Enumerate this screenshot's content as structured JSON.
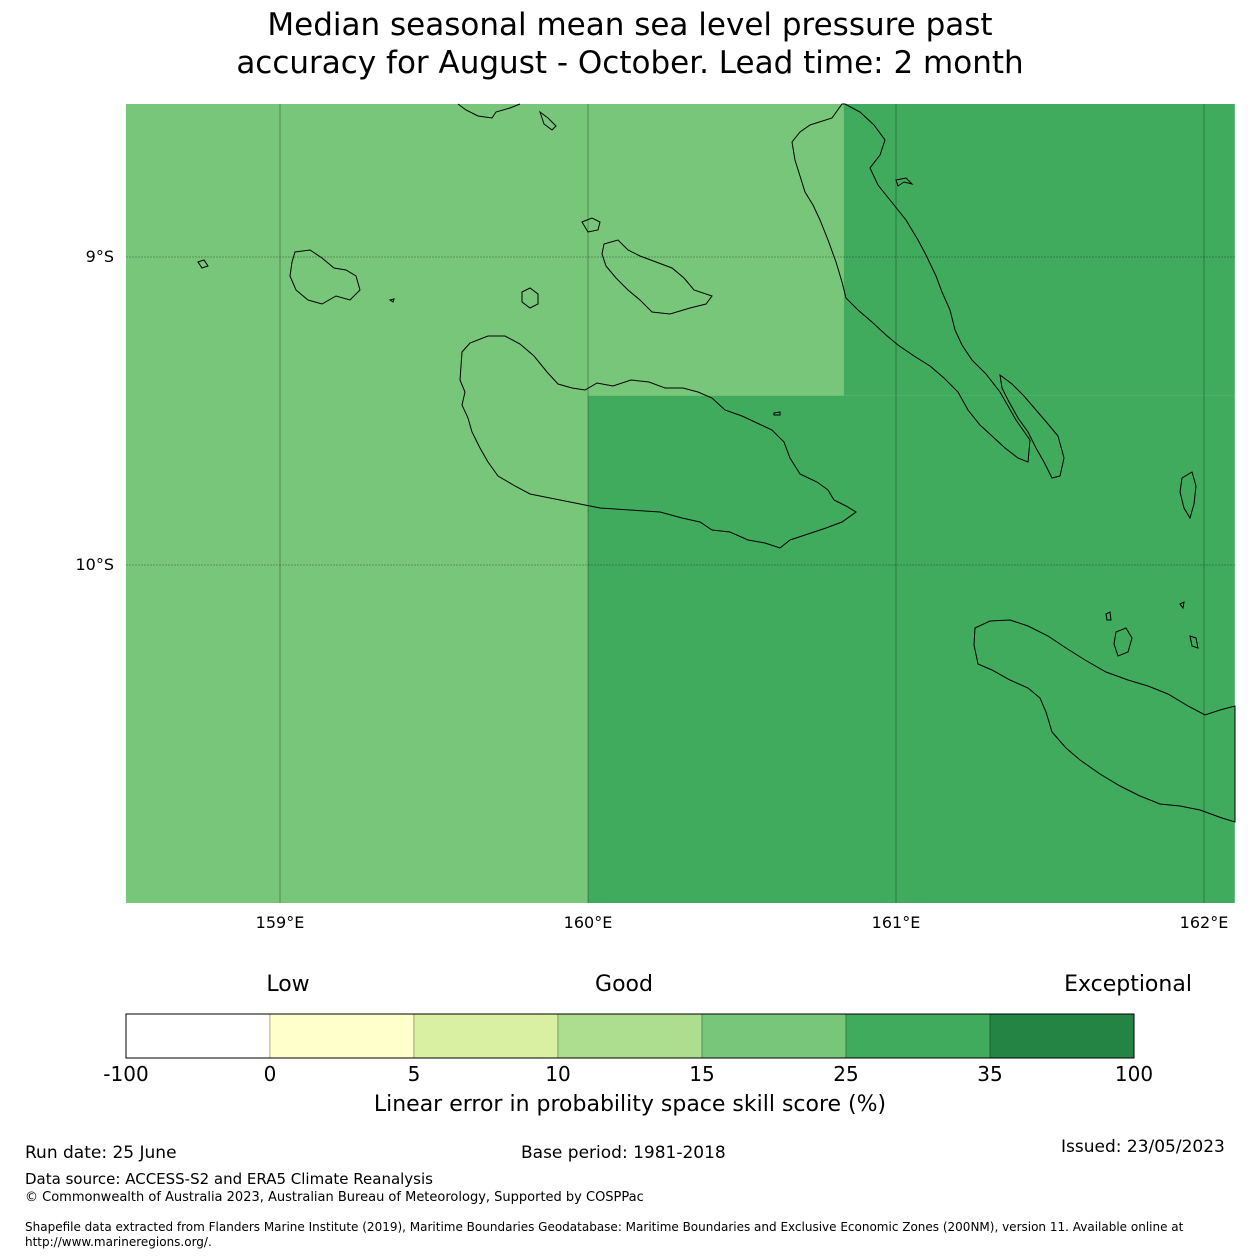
{
  "title": {
    "line1": "Median seasonal mean sea level pressure past",
    "line2": "accuracy for August - October. Lead time: 2 month"
  },
  "map": {
    "lon_range": [
      158.5,
      162.1
    ],
    "lat_range": [
      -11.1,
      -8.5
    ],
    "lat_ticks": [
      {
        "value": -9,
        "label": "9°S"
      },
      {
        "value": -10,
        "label": "10°S"
      }
    ],
    "lon_ticks": [
      {
        "value": 159,
        "label": "159°E"
      },
      {
        "value": 160,
        "label": "160°E"
      },
      {
        "value": 161,
        "label": "161°E"
      },
      {
        "value": 162,
        "label": "162°E"
      }
    ],
    "skill_cells": [
      {
        "lon": [
          158.5,
          160.0
        ],
        "lat": [
          -11.1,
          -8.5
        ],
        "category": "15-25",
        "color": "#78c679"
      },
      {
        "lon": [
          160.0,
          160.83
        ],
        "lat": [
          -9.45,
          -8.5
        ],
        "category": "15-25",
        "color": "#78c679"
      },
      {
        "lon": [
          160.83,
          162.1
        ],
        "lat": [
          -9.45,
          -8.5
        ],
        "category": "25-35",
        "color": "#41ab5d"
      },
      {
        "lon": [
          160.0,
          162.1
        ],
        "lat": [
          -11.1,
          -9.45
        ],
        "category": "25-35",
        "color": "#41ab5d"
      }
    ]
  },
  "colorbar": {
    "categories": [
      {
        "label": "Low"
      },
      {
        "label": "Good"
      },
      {
        "label": "Exceptional"
      }
    ],
    "ticks": [
      "-100",
      "0",
      "5",
      "10",
      "15",
      "25",
      "35",
      "100"
    ],
    "colors": [
      "#ffffff",
      "#ffffcc",
      "#d9f0a3",
      "#addd8e",
      "#78c679",
      "#41ab5d",
      "#238443"
    ],
    "label": "Linear error in probability space skill score (%)"
  },
  "footer": {
    "run_date": "Run date: 25 June",
    "base_period": "Base period: 1981-2018",
    "issued": "Issued: 23/05/2023",
    "data_source": "Data source: ACCESS-S2 and ERA5 Climate Reanalysis",
    "copyright": "© Commonwealth of Australia 2023, Australian Bureau of Meteorology, Supported by COSPPac",
    "shapefile": "Shapefile data extracted from Flanders Marine Institute (2019), Maritime Boundaries Geodatabase: Maritime Boundaries and Exclusive Economic Zones (200NM), version 11. Available online at http://www.marineregions.org/."
  }
}
